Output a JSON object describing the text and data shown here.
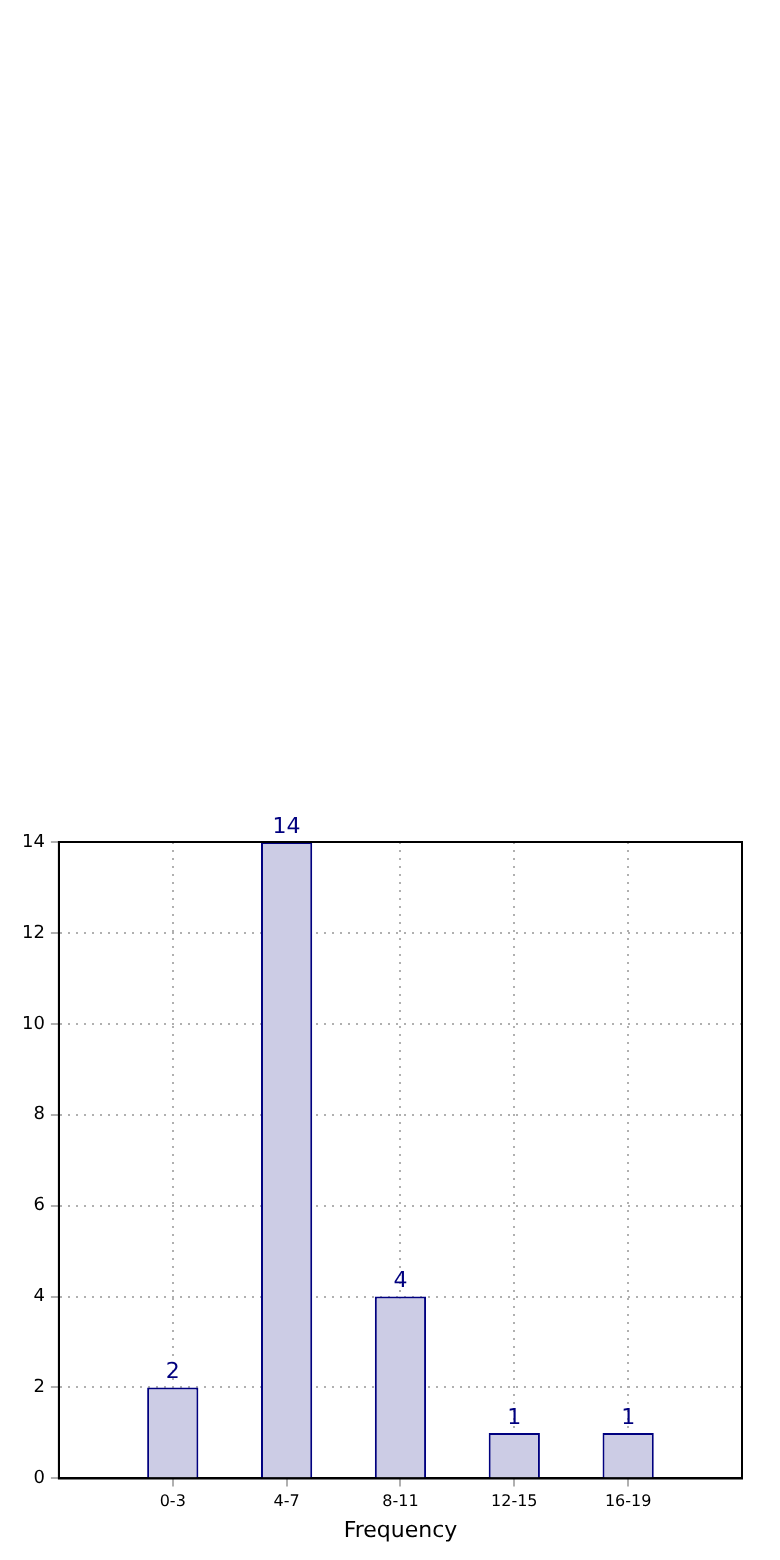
{
  "chart_data": {
    "type": "bar",
    "xlabel": "Frequency",
    "categories": [
      "0-3",
      "4-7",
      "8-11",
      "12-15",
      "16-19"
    ],
    "values": [
      2,
      14,
      4,
      1,
      1
    ],
    "color": "#cccce5",
    "ylim": [
      0,
      14
    ],
    "yticks": [
      0,
      2,
      4,
      6,
      8,
      10,
      12,
      14
    ],
    "grid": true,
    "data_labels": true
  }
}
